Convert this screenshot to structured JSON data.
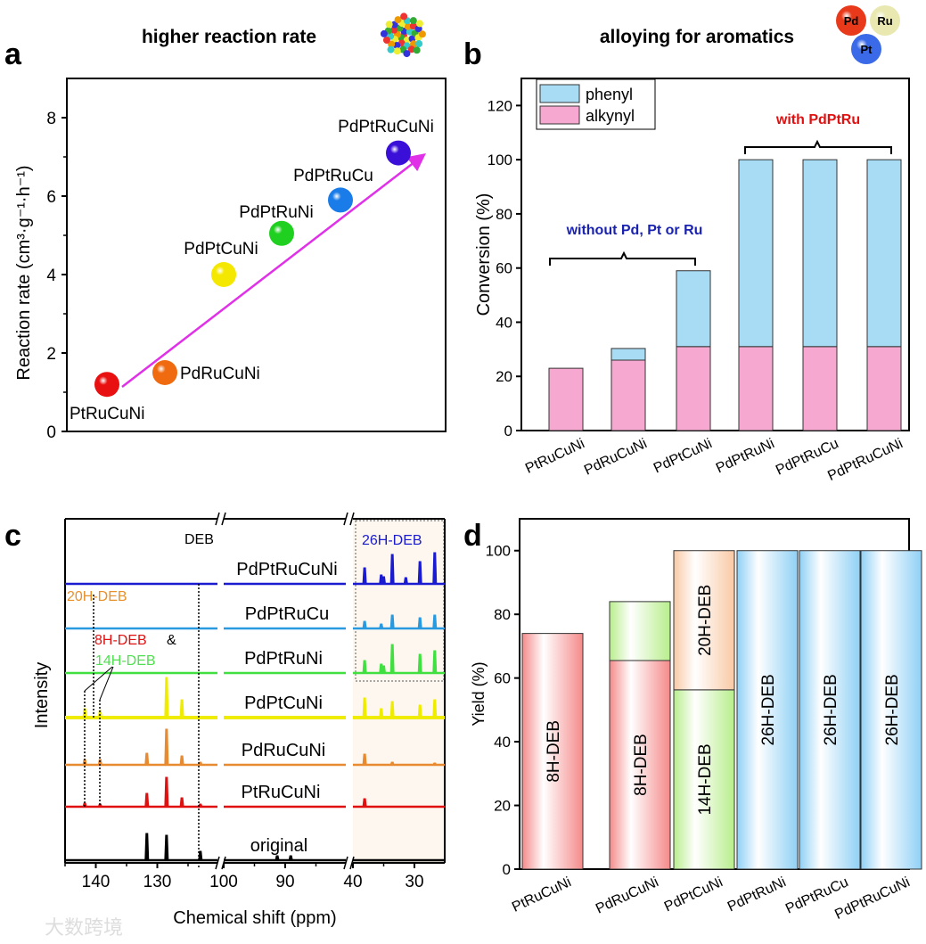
{
  "panel_letters": [
    "a",
    "b",
    "c",
    "d"
  ],
  "panel_titles": {
    "a": "higher reaction rate",
    "b": "alloying for aromatics"
  },
  "icon_spheres": [
    "Pd",
    "Ru",
    "Pt"
  ],
  "watermark": "大数跨境",
  "chart_data": [
    {
      "type": "scatter",
      "panel": "a",
      "ylabel": "Reaction rate (cm³·g⁻¹·h⁻¹)",
      "ylim": [
        0,
        9
      ],
      "yticks": [
        0,
        2,
        4,
        6,
        8
      ],
      "points": [
        {
          "label": "PtRuCuNi",
          "y": 1.2,
          "color": "#e81010"
        },
        {
          "label": "PdRuCuNi",
          "y": 1.5,
          "color": "#f06a10"
        },
        {
          "label": "PdPtCuNi",
          "y": 4.0,
          "color": "#f5e800"
        },
        {
          "label": "PdPtRuNi",
          "y": 5.05,
          "color": "#20d020"
        },
        {
          "label": "PdPtRuCu",
          "y": 5.9,
          "color": "#1a7ce8"
        },
        {
          "label": "PdPtRuCuNi",
          "y": 7.1,
          "color": "#3a10d8"
        }
      ],
      "arrow_color": "#e030e8"
    },
    {
      "type": "bar",
      "stacked": true,
      "panel": "b",
      "ylabel": "Conversion (%)",
      "ylim": [
        0,
        130
      ],
      "yticks": [
        0,
        20,
        40,
        60,
        80,
        100,
        120
      ],
      "categories": [
        "PtRuCuNi",
        "PdRuCuNi",
        "PdPtCuNi",
        "PdPtRuNi",
        "PdPtRuCu",
        "PdPtRuCuNi"
      ],
      "series": [
        {
          "name": "alkynyl",
          "color": "#f7a8d0",
          "values": [
            23,
            26,
            31,
            31,
            31,
            31
          ]
        },
        {
          "name": "phenyl",
          "color": "#a8dcf5",
          "values": [
            0,
            4.3,
            28,
            69,
            69,
            69
          ]
        }
      ],
      "legend": "top-left",
      "annotations": [
        {
          "text": "without Pd, Pt or Ru",
          "color": "#1a22b0"
        },
        {
          "text": "with PdPtRu",
          "color": "#e01010"
        }
      ]
    },
    {
      "type": "line",
      "panel": "c",
      "xlabel": "Chemical shift (ppm)",
      "ylabel": "Intensity",
      "x_segments": [
        [
          145,
          120
        ],
        [
          100,
          80
        ],
        [
          40,
          25
        ]
      ],
      "xticks": [
        140,
        130,
        100,
        90,
        40,
        30
      ],
      "series": [
        {
          "name": "PdPtRuCuNi",
          "color": "#1a1ad0",
          "peaks": [
            [
              38.1,
              18
            ],
            [
              35.4,
              10
            ],
            [
              35,
              8
            ],
            [
              33.6,
              33
            ],
            [
              31.4,
              7
            ],
            [
              29.1,
              25
            ],
            [
              26.7,
              35
            ]
          ]
        },
        {
          "name": "PdPtRuCu",
          "color": "#2a9ae0",
          "peaks": [
            [
              38.1,
              8
            ],
            [
              35.4,
              5
            ],
            [
              33.6,
              15
            ],
            [
              29.1,
              12
            ],
            [
              26.7,
              15
            ]
          ]
        },
        {
          "name": "PdPtRuNi",
          "color": "#40e040",
          "peaks": [
            [
              38.1,
              14
            ],
            [
              35.4,
              10
            ],
            [
              35,
              8
            ],
            [
              33.6,
              32
            ],
            [
              29.1,
              21
            ],
            [
              26.7,
              25
            ]
          ]
        },
        {
          "name": "PdPtCuNi",
          "color": "#f0ec00",
          "peaks": [
            [
              141.8,
              10
            ],
            [
              139.3,
              8
            ],
            [
              128.5,
              45
            ],
            [
              126,
              20
            ],
            [
              38.1,
              22
            ],
            [
              35.4,
              10
            ],
            [
              33.6,
              18
            ],
            [
              29.1,
              14
            ],
            [
              26.7,
              20
            ]
          ]
        },
        {
          "name": "PdRuCuNi",
          "color": "#e88a30",
          "peaks": [
            [
              141.8,
              6
            ],
            [
              139.3,
              6
            ],
            [
              131.7,
              13
            ],
            [
              128.5,
              40
            ],
            [
              126,
              10
            ],
            [
              123,
              3
            ],
            [
              38.1,
              12
            ],
            [
              33.6,
              3
            ],
            [
              26.7,
              2
            ]
          ]
        },
        {
          "name": "PtRuCuNi",
          "color": "#e01010",
          "peaks": [
            [
              141.8,
              4
            ],
            [
              139.3,
              3
            ],
            [
              131.7,
              15
            ],
            [
              128.5,
              33
            ],
            [
              126,
              10
            ],
            [
              123,
              3
            ],
            [
              38.1,
              9
            ]
          ]
        },
        {
          "name": "original",
          "color": "#000000",
          "peaks": [
            [
              131.7,
              30
            ],
            [
              128.5,
              28
            ],
            [
              123,
              10
            ],
            [
              91.3,
              5
            ],
            [
              89.1,
              5
            ]
          ]
        }
      ],
      "annotations": [
        {
          "text": "DEB",
          "color": "#000000",
          "ppm": 123
        },
        {
          "text": "26H-DEB",
          "color": "#1a1ad0"
        },
        {
          "text": "20H-DEB",
          "color": "#e8902a",
          "ppm": 140.3
        },
        {
          "text": "8H-DEB",
          "color": "#e01010"
        },
        {
          "text": "&",
          "color": "#000000"
        },
        {
          "text": "14H-DEB",
          "color": "#50e050",
          "ppm": [
            141.8,
            139.3
          ]
        }
      ]
    },
    {
      "type": "bar",
      "stacked": true,
      "panel": "d",
      "ylabel": "Yield (%)",
      "ylim": [
        0,
        110
      ],
      "yticks": [
        0,
        20,
        40,
        60,
        80,
        100
      ],
      "categories": [
        "PtRuCuNi",
        "PdRuCuNi",
        "PdPtCuNi",
        "PdPtRuNi",
        "PdPtRuCu",
        "PdPtRuCuNi"
      ],
      "stacks": [
        [
          {
            "name": "8H-DEB",
            "value": 74,
            "color": "#f58a8a"
          }
        ],
        [
          {
            "name": "8H-DEB",
            "value": 65.5,
            "color": "#f58a8a"
          },
          {
            "name": "",
            "value": 18.5,
            "color": "#b8ee8c"
          }
        ],
        [
          {
            "name": "14H-DEB",
            "value": 56.3,
            "color": "#b8ee8c"
          },
          {
            "name": "20H-DEB",
            "value": 43.7,
            "color": "#f9c9a5"
          }
        ],
        [
          {
            "name": "26H-DEB",
            "value": 100,
            "color": "#8fd0f5"
          }
        ],
        [
          {
            "name": "26H-DEB",
            "value": 100,
            "color": "#8fd0f5"
          }
        ],
        [
          {
            "name": "26H-DEB",
            "value": 100,
            "color": "#8fd0f5"
          }
        ]
      ]
    }
  ]
}
